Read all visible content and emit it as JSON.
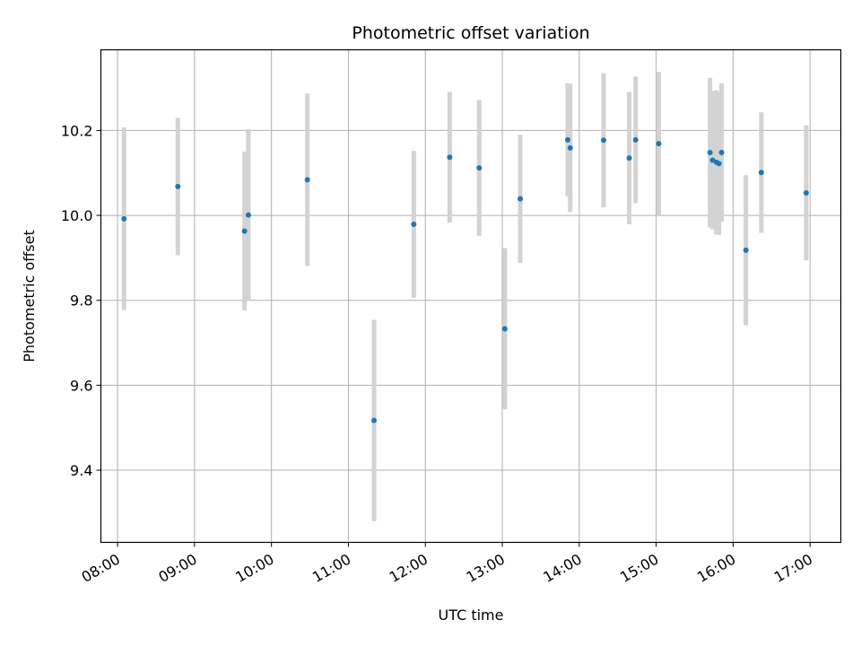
{
  "chart_data": {
    "type": "scatter",
    "title": "Photometric offset variation",
    "xlabel": "UTC time",
    "ylabel": "Photometric offset",
    "x_tick_labels": [
      "08:00",
      "09:00",
      "10:00",
      "11:00",
      "12:00",
      "13:00",
      "14:00",
      "15:00",
      "16:00",
      "17:00"
    ],
    "y_tick_labels": [
      "9.4",
      "9.6",
      "9.8",
      "10.0",
      "10.2"
    ],
    "x_ticks": [
      "08:00",
      "09:00",
      "10:00",
      "11:00",
      "12:00",
      "13:00",
      "14:00",
      "15:00",
      "16:00",
      "17:00"
    ],
    "y_ticks": [
      9.4,
      9.6,
      9.8,
      10.0,
      10.2
    ],
    "xlim": [
      "07:47",
      "17:24"
    ],
    "ylim": [
      9.23,
      10.39
    ],
    "grid": true,
    "series": [
      {
        "marker_color": "#1f77b4",
        "errorbar_color": "#d3d3d3",
        "points": [
          {
            "x": "08:05",
            "y": 9.992,
            "err": 0.215
          },
          {
            "x": "08:47",
            "y": 10.068,
            "err": 0.162
          },
          {
            "x": "09:39",
            "y": 9.963,
            "err": 0.187
          },
          {
            "x": "09:42",
            "y": 10.001,
            "err": 0.202
          },
          {
            "x": "10:28",
            "y": 10.084,
            "err": 0.203
          },
          {
            "x": "11:20",
            "y": 9.517,
            "err": 0.237
          },
          {
            "x": "11:51",
            "y": 9.979,
            "err": 0.173
          },
          {
            "x": "12:19",
            "y": 10.137,
            "err": 0.154
          },
          {
            "x": "12:42",
            "y": 10.112,
            "err": 0.16
          },
          {
            "x": "13:02",
            "y": 9.733,
            "err": 0.19
          },
          {
            "x": "13:14",
            "y": 10.039,
            "err": 0.151
          },
          {
            "x": "13:51",
            "y": 10.178,
            "err": 0.133
          },
          {
            "x": "13:53",
            "y": 10.159,
            "err": 0.151
          },
          {
            "x": "14:19",
            "y": 10.177,
            "err": 0.158
          },
          {
            "x": "14:39",
            "y": 10.135,
            "err": 0.156
          },
          {
            "x": "14:44",
            "y": 10.178,
            "err": 0.149
          },
          {
            "x": "15:02",
            "y": 10.169,
            "err": 0.169
          },
          {
            "x": "15:42",
            "y": 10.148,
            "err": 0.176
          },
          {
            "x": "15:44",
            "y": 10.13,
            "err": 0.163
          },
          {
            "x": "15:47",
            "y": 10.125,
            "err": 0.17
          },
          {
            "x": "15:49",
            "y": 10.122,
            "err": 0.168
          },
          {
            "x": "15:51",
            "y": 10.148,
            "err": 0.163
          },
          {
            "x": "16:10",
            "y": 9.918,
            "err": 0.177
          },
          {
            "x": "16:22",
            "y": 10.101,
            "err": 0.142
          },
          {
            "x": "16:57",
            "y": 10.053,
            "err": 0.159
          }
        ]
      }
    ]
  }
}
